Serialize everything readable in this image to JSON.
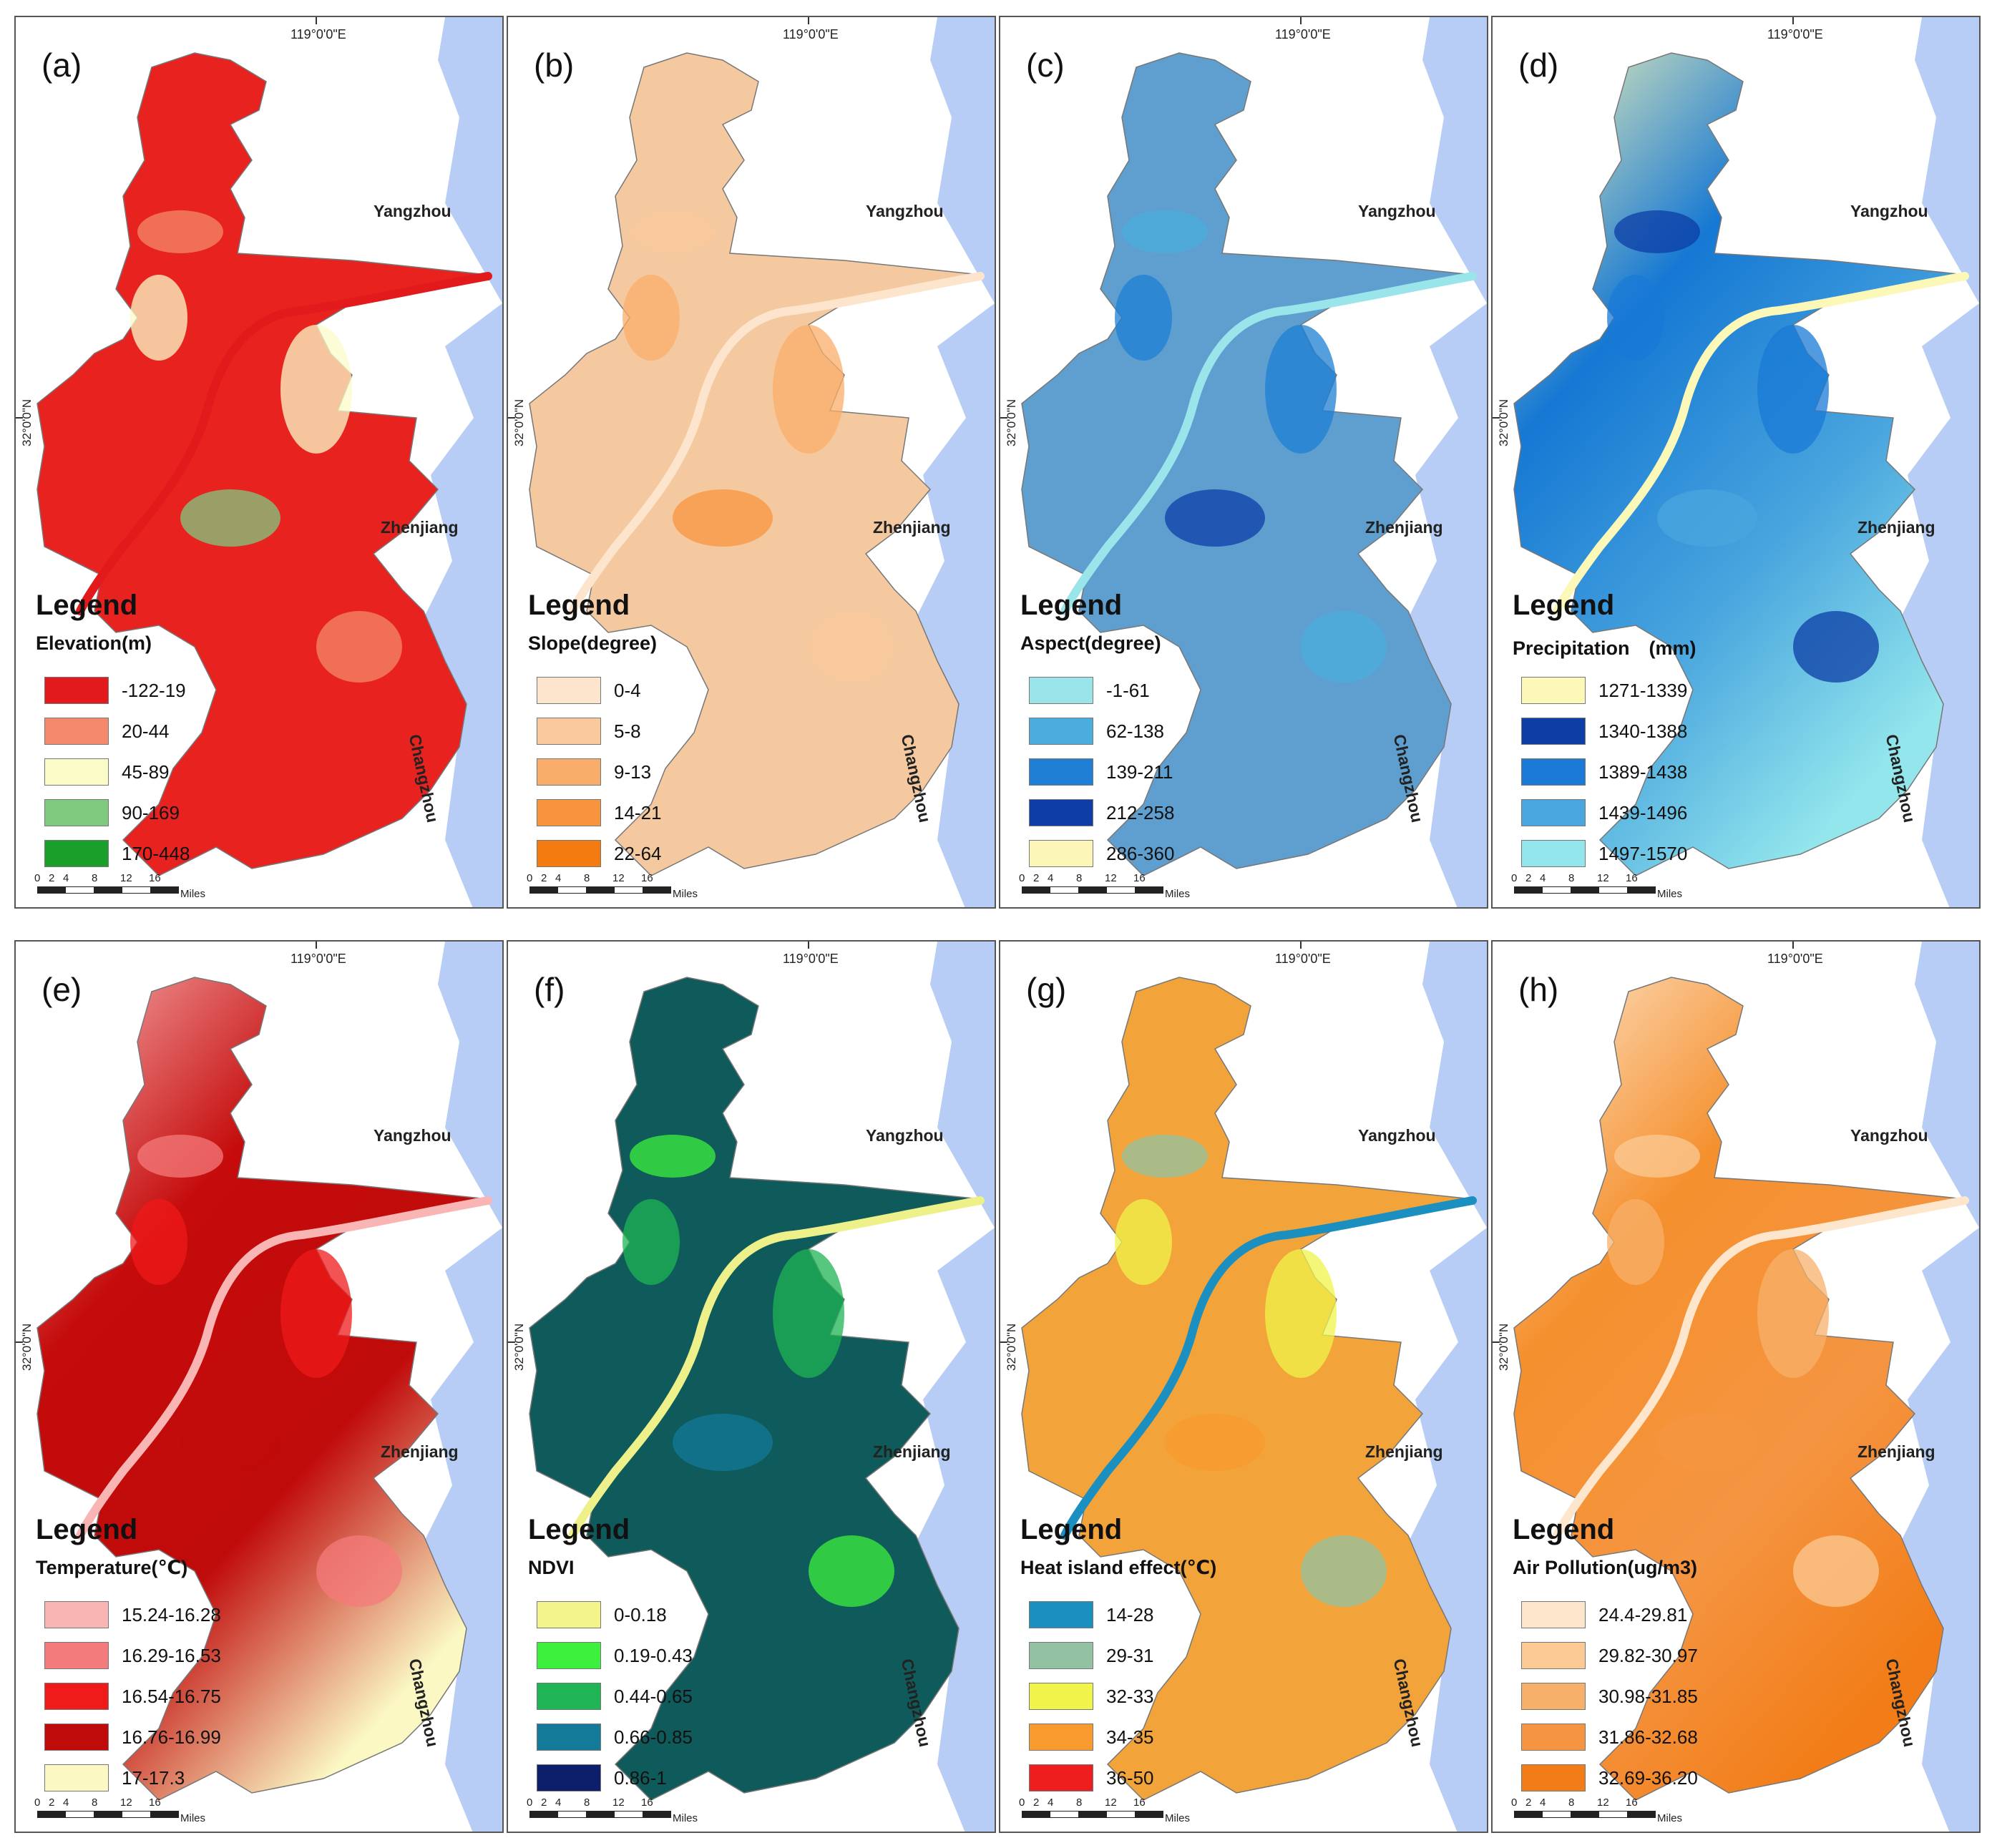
{
  "common": {
    "longitude_label": "119°0'0\"E",
    "latitude_label": "32°0'0\"N",
    "cities": [
      "Yangzhou",
      "Zhenjiang",
      "Changzhou"
    ],
    "legend_heading": "Legend",
    "scale_ticks": [
      "0",
      "2",
      "4",
      "8",
      "12",
      "16"
    ],
    "scale_unit": "Miles"
  },
  "panels": [
    {
      "label": "(a)",
      "subtitle": "Elevation(m)",
      "map_fill": "#e8221f",
      "classes": [
        {
          "label": "-122-19",
          "color": "#e31a1c"
        },
        {
          "label": "20-44",
          "color": "#f4896b"
        },
        {
          "label": "45-89",
          "color": "#fbfbc8"
        },
        {
          "label": "90-169",
          "color": "#7fc97f"
        },
        {
          "label": "170-448",
          "color": "#1a9f2a"
        }
      ]
    },
    {
      "label": "(b)",
      "subtitle": "Slope(degree)",
      "map_fill": "#f5c9a0",
      "classes": [
        {
          "label": "0-4",
          "color": "#fde5cd"
        },
        {
          "label": "5-8",
          "color": "#fac89d"
        },
        {
          "label": "9-13",
          "color": "#f9ad6a"
        },
        {
          "label": "14-21",
          "color": "#f7943d"
        },
        {
          "label": "22-64",
          "color": "#f47b10"
        }
      ]
    },
    {
      "label": "(c)",
      "subtitle": "Aspect(degree)",
      "map_fill": "#5e9fd0",
      "classes": [
        {
          "label": "-1-61",
          "color": "#9ae5ea"
        },
        {
          "label": "62-138",
          "color": "#4badde"
        },
        {
          "label": "139-211",
          "color": "#1e7fd4"
        },
        {
          "label": "212-258",
          "color": "#0e3da8"
        },
        {
          "label": "286-360",
          "color": "#fbf6b8"
        }
      ]
    },
    {
      "label": "(d)",
      "subtitle": "Precipitation　(mm)",
      "map_fill": "#1578d3",
      "classes": [
        {
          "label": "1271-1339",
          "color": "#fbf8b8"
        },
        {
          "label": "1340-1388",
          "color": "#0c3ea5"
        },
        {
          "label": "1389-1438",
          "color": "#1a7ad6"
        },
        {
          "label": "1439-1496",
          "color": "#4aa6de"
        },
        {
          "label": "1497-1570",
          "color": "#93e6ec"
        }
      ]
    },
    {
      "label": "(e)",
      "subtitle": "Temperature(℃)",
      "map_fill": "#c50b0b",
      "classes": [
        {
          "label": "15.24-16.28",
          "color": "#f9b4b4"
        },
        {
          "label": "16.29-16.53",
          "color": "#f47b7b"
        },
        {
          "label": "16.54-16.75",
          "color": "#ef1a1a"
        },
        {
          "label": "16.76-16.99",
          "color": "#c00b0b"
        },
        {
          "label": "17-17.3",
          "color": "#fbf8c4"
        }
      ]
    },
    {
      "label": "(f)",
      "subtitle": "NDVI",
      "map_fill": "#0f5a5a",
      "classes": [
        {
          "label": "0-0.18",
          "color": "#f3f58a"
        },
        {
          "label": "0.19-0.43",
          "color": "#3ef03e"
        },
        {
          "label": "0.44-0.65",
          "color": "#1fb454"
        },
        {
          "label": "0.66-0.85",
          "color": "#137a9a"
        },
        {
          "label": "0.86-1",
          "color": "#0d1e6a"
        }
      ]
    },
    {
      "label": "(g)",
      "subtitle": "Heat island effect(℃)",
      "map_fill": "#f2a43a",
      "classes": [
        {
          "label": "14-28",
          "color": "#1b8fbf"
        },
        {
          "label": "29-31",
          "color": "#92c2a2"
        },
        {
          "label": "32-33",
          "color": "#eff34a"
        },
        {
          "label": "34-35",
          "color": "#f89a2d"
        },
        {
          "label": "36-50",
          "color": "#ef1e1e"
        }
      ]
    },
    {
      "label": "(h)",
      "subtitle": "Air Pollution(ug/m3)",
      "map_fill": "#f5902e",
      "classes": [
        {
          "label": "24.4-29.81",
          "color": "#fde6cc"
        },
        {
          "label": "29.82-30.97",
          "color": "#fbc994"
        },
        {
          "label": "30.98-31.85",
          "color": "#f7b06a"
        },
        {
          "label": "31.86-32.68",
          "color": "#f59542"
        },
        {
          "label": "32.69-36.20",
          "color": "#f27d18"
        }
      ]
    }
  ]
}
